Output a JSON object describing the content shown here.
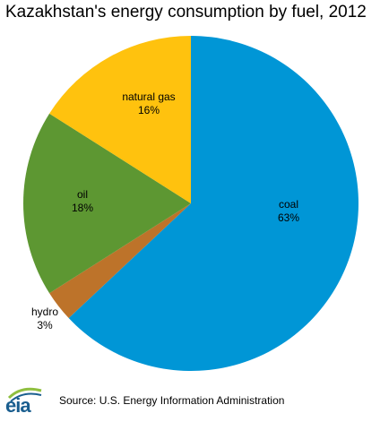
{
  "header": {
    "title": "Kazakhstan's energy consumption by fuel, 2012"
  },
  "chart_data": {
    "type": "pie",
    "title": "Kazakhstan's energy consumption by fuel, 2012",
    "slices": [
      {
        "label": "coal",
        "value": 63,
        "value_text": "63%",
        "color": "#0096d6"
      },
      {
        "label": "hydro",
        "value": 3,
        "value_text": "3%",
        "color": "#bd732a"
      },
      {
        "label": "oil",
        "value": 18,
        "value_text": "18%",
        "color": "#5d9732"
      },
      {
        "label": "natural gas",
        "value": 16,
        "value_text": "16%",
        "color": "#ffc20e"
      }
    ]
  },
  "footer": {
    "source": "Source: U.S. Energy Information Administration",
    "logo_text": "eia"
  }
}
